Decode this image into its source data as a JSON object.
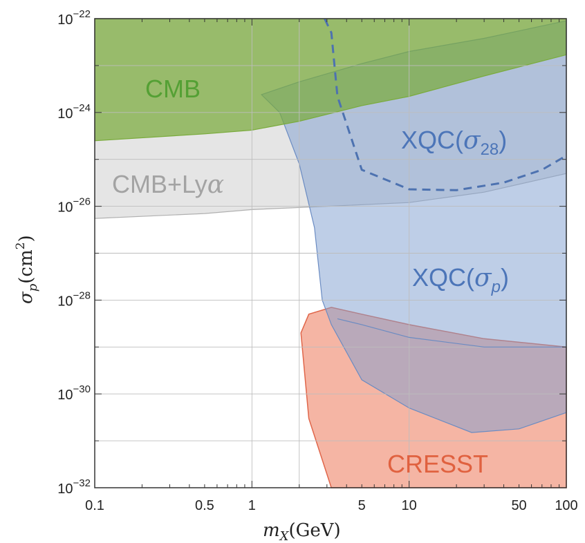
{
  "chart_data": {
    "type": "area",
    "xscale": "log",
    "yscale": "log",
    "xlim": [
      0.1,
      100
    ],
    "ylim": [
      1e-32,
      1e-22
    ],
    "grid": true,
    "xlabel": {
      "main": "m",
      "sub": "X",
      "rest": "(GeV)"
    },
    "ylabel": {
      "main": "σ",
      "sub": "p",
      "rest": "(cm",
      "sup": "2",
      "close": ")"
    },
    "x_ticks": [
      {
        "value": 0.1,
        "label": "0.1"
      },
      {
        "value": 0.5,
        "label": "0.5"
      },
      {
        "value": 1,
        "label": "1"
      },
      {
        "value": 5,
        "label": "5"
      },
      {
        "value": 10,
        "label": "10"
      },
      {
        "value": 50,
        "label": "50"
      },
      {
        "value": 100,
        "label": "100"
      }
    ],
    "y_ticks": [
      {
        "value": 1e-32,
        "base": "10",
        "exp": "−32"
      },
      {
        "value": 1e-30,
        "base": "10",
        "exp": "−30"
      },
      {
        "value": 1e-28,
        "base": "10",
        "exp": "−28"
      },
      {
        "value": 1e-26,
        "base": "10",
        "exp": "−26"
      },
      {
        "value": 1e-24,
        "base": "10",
        "exp": "−24"
      },
      {
        "value": 1e-22,
        "base": "10",
        "exp": "−22"
      }
    ],
    "series": [
      {
        "name": "CMB",
        "kind": "excluded region above boundary",
        "color": "#7aab3c",
        "label": {
          "text": "CMB"
        },
        "boundary": [
          [
            0.1,
            2.5e-25
          ],
          [
            0.5,
            3.5e-25
          ],
          [
            1,
            4.2e-25
          ],
          [
            2,
            6.5e-25
          ],
          [
            5,
            1.4e-24
          ],
          [
            10,
            2.2e-24
          ],
          [
            30,
            6e-24
          ],
          [
            100,
            1.7e-23
          ]
        ]
      },
      {
        "name": "CMB+Lyα",
        "kind": "excluded region above boundary",
        "color": "#cfcfcf",
        "label": {
          "text": "CMB+Ly",
          "symbol": "α"
        },
        "boundary": [
          [
            0.1,
            5.5e-27
          ],
          [
            0.5,
            7e-27
          ],
          [
            1,
            8.5e-27
          ],
          [
            3,
            1e-26
          ],
          [
            10,
            1.2e-26
          ],
          [
            30,
            2e-26
          ],
          [
            100,
            5e-26
          ]
        ]
      },
      {
        "name": "XQC(σp)",
        "kind": "excluded region",
        "color": "#7d9dcf",
        "label": {
          "text": "XQC(",
          "symbol": "σ",
          "sub": "p",
          "close": ")"
        },
        "lower_boundary": [
          [
            1.15,
            2.4e-24
          ],
          [
            1.5,
            1e-24
          ],
          [
            2,
            8e-26
          ],
          [
            2.5,
            3.5e-27
          ],
          [
            2.8,
            1e-28
          ],
          [
            3.2,
            3e-29
          ],
          [
            5,
            2e-30
          ],
          [
            10,
            5e-31
          ],
          [
            25,
            1.5e-31
          ],
          [
            50,
            1.8e-31
          ],
          [
            100,
            4e-31
          ]
        ],
        "upper_boundary": [
          [
            1.15,
            2.4e-24
          ],
          [
            2,
            4.5e-24
          ],
          [
            5,
            1.1e-23
          ],
          [
            10,
            2e-23
          ],
          [
            30,
            3.8e-23
          ],
          [
            100,
            9e-23
          ]
        ],
        "floor_segment": [
          [
            3.5,
            4e-29
          ],
          [
            5,
            3e-29
          ],
          [
            10,
            1.6e-29
          ],
          [
            30,
            1e-29
          ],
          [
            100,
            1e-29
          ]
        ]
      },
      {
        "name": "XQC(σ28)",
        "kind": "dashed boundary",
        "color": "#4d72b0",
        "label": {
          "text": "XQC(",
          "symbol": "σ",
          "sub": "28",
          "close": ")"
        },
        "points": [
          [
            2.9,
            1e-22
          ],
          [
            3.2,
            5e-23
          ],
          [
            3.5,
            2.2e-24
          ],
          [
            5,
            6e-26
          ],
          [
            10,
            2.3e-26
          ],
          [
            20,
            2.2e-26
          ],
          [
            40,
            3.2e-26
          ],
          [
            70,
            6e-26
          ],
          [
            100,
            1.2e-25
          ]
        ]
      },
      {
        "name": "CRESST",
        "kind": "excluded region",
        "color": "#ee8468",
        "label": {
          "text": "CRESST"
        },
        "boundary": [
          [
            3.2,
            1e-32
          ],
          [
            2.3,
            3e-31
          ],
          [
            2.05,
            2e-29
          ],
          [
            2.3,
            5e-29
          ],
          [
            3.2,
            7e-29
          ],
          [
            5,
            5e-29
          ],
          [
            10,
            3e-29
          ],
          [
            30,
            1.5e-29
          ],
          [
            100,
            1e-29
          ],
          [
            100,
            1e-32
          ]
        ]
      }
    ]
  }
}
